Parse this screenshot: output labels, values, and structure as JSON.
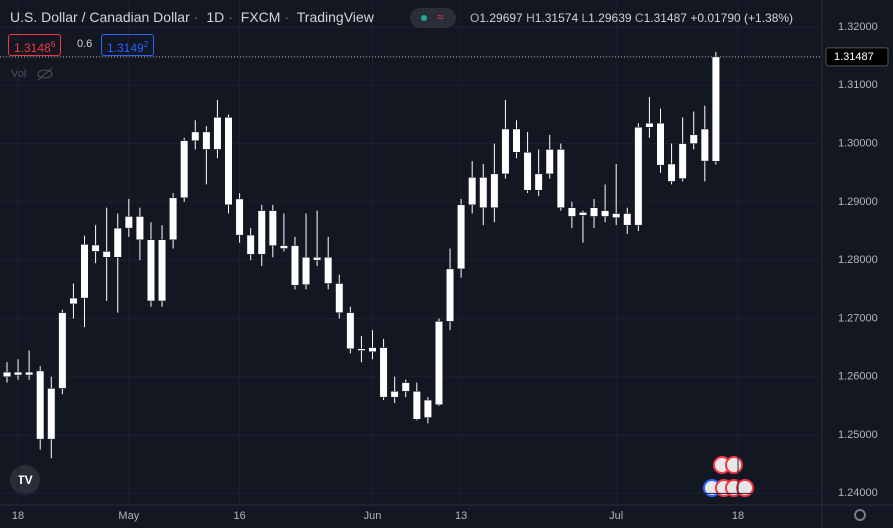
{
  "header": {
    "symbol": "U.S. Dollar / Canadian Dollar",
    "interval": "1D",
    "exchange": "FXCM",
    "brand": "TradingView",
    "o_label": "O",
    "h_label": "H",
    "l_label": "L",
    "c_label": "C",
    "change": "+0.01790 (+1.38%)"
  },
  "trade": {
    "sell_price": "1.3148",
    "sell_pip": "6",
    "spread": "0.6",
    "buy_price": "1.3149",
    "buy_pip": "2"
  },
  "volume_label": "Vol",
  "chart_data": {
    "type": "candlestick",
    "open": [
      1.26,
      1.2608,
      1.2603,
      1.261,
      1.2493,
      1.258,
      1.2725,
      1.2735,
      1.2826,
      1.2815,
      1.2805,
      1.2855,
      1.2875,
      1.2835,
      1.273,
      1.2835,
      1.2907,
      1.3005,
      1.302,
      1.299,
      1.3045,
      1.2905,
      1.2843,
      1.281,
      1.2885,
      1.2825,
      1.2825,
      1.2758,
      1.2805,
      1.2805,
      1.276,
      1.271,
      1.2648,
      1.2643,
      1.265,
      1.2565,
      1.2575,
      1.2575,
      1.253,
      1.2552,
      1.2695,
      1.2785,
      1.2895,
      1.2942,
      1.289,
      1.2948,
      1.3025,
      1.2985,
      1.292,
      1.2948,
      1.299,
      1.289,
      1.2877,
      1.2875,
      1.2885,
      1.288,
      1.288,
      1.286,
      1.3028,
      1.3035,
      1.2965,
      1.294,
      1.3,
      1.3025,
      1.29697
    ],
    "high": [
      1.2625,
      1.263,
      1.2645,
      1.2618,
      1.26,
      1.2715,
      1.276,
      1.2842,
      1.286,
      1.289,
      1.288,
      1.2905,
      1.289,
      1.2865,
      1.286,
      1.2915,
      1.301,
      1.304,
      1.303,
      1.3075,
      1.305,
      1.2915,
      1.2855,
      1.2895,
      1.2895,
      1.288,
      1.284,
      1.288,
      1.2885,
      1.284,
      1.2775,
      1.272,
      1.267,
      1.268,
      1.2665,
      1.26,
      1.2595,
      1.259,
      1.2565,
      1.27,
      1.282,
      1.2905,
      1.297,
      1.2965,
      1.3,
      1.3075,
      1.304,
      1.302,
      1.299,
      1.3015,
      1.3,
      1.29,
      1.2885,
      1.2905,
      1.293,
      1.2965,
      1.289,
      1.3035,
      1.308,
      1.306,
      1.3,
      1.3045,
      1.3055,
      1.3065,
      1.31574
    ],
    "low": [
      1.259,
      1.2595,
      1.2595,
      1.2475,
      1.246,
      1.257,
      1.27,
      1.2685,
      1.2795,
      1.273,
      1.271,
      1.284,
      1.28,
      1.272,
      1.272,
      1.282,
      1.29,
      1.299,
      1.293,
      1.2975,
      1.288,
      1.283,
      1.28,
      1.279,
      1.2805,
      1.2815,
      1.275,
      1.275,
      1.279,
      1.275,
      1.27,
      1.264,
      1.2625,
      1.263,
      1.256,
      1.2555,
      1.2565,
      1.2525,
      1.252,
      1.255,
      1.268,
      1.277,
      1.288,
      1.286,
      1.2865,
      1.294,
      1.2975,
      1.2915,
      1.291,
      1.294,
      1.2885,
      1.2855,
      1.283,
      1.2855,
      1.2865,
      1.286,
      1.2845,
      1.285,
      1.301,
      1.295,
      1.293,
      1.2935,
      1.299,
      1.2935,
      1.29639
    ],
    "close": [
      1.2608,
      1.2603,
      1.2608,
      1.2493,
      1.258,
      1.271,
      1.2735,
      1.2827,
      1.2815,
      1.2805,
      1.2855,
      1.2875,
      1.2835,
      1.273,
      1.2835,
      1.2907,
      1.3005,
      1.302,
      1.299,
      1.3045,
      1.2895,
      1.2843,
      1.281,
      1.2885,
      1.2825,
      1.282,
      1.2757,
      1.2805,
      1.28,
      1.276,
      1.271,
      1.2648,
      1.2645,
      1.265,
      1.2565,
      1.2575,
      1.259,
      1.2527,
      1.256,
      1.2695,
      1.2785,
      1.2895,
      1.2942,
      1.289,
      1.2948,
      1.3025,
      1.2985,
      1.292,
      1.2948,
      1.299,
      1.289,
      1.2875,
      1.2882,
      1.289,
      1.2875,
      1.2873,
      1.286,
      1.3028,
      1.3035,
      1.2963,
      1.2935,
      1.3,
      1.3015,
      1.297,
      1.31487
    ],
    "color": "#ffffff",
    "xlim": [
      -0.63,
      73.4
    ],
    "xticks": [
      {
        "value": 1,
        "label": "18"
      },
      {
        "value": 11,
        "label": "May"
      },
      {
        "value": 21,
        "label": "16"
      },
      {
        "value": 33,
        "label": "Jun"
      },
      {
        "value": 41,
        "label": "13"
      },
      {
        "value": 55,
        "label": "Jul"
      },
      {
        "value": 66,
        "label": "18"
      }
    ],
    "ylim": [
      1.238,
      1.32463
    ],
    "yticks": [
      {
        "value": 1.24,
        "label": "1.24000"
      },
      {
        "value": 1.25,
        "label": "1.25000"
      },
      {
        "value": 1.26,
        "label": "1.26000"
      },
      {
        "value": 1.27,
        "label": "1.27000"
      },
      {
        "value": 1.28,
        "label": "1.28000"
      },
      {
        "value": 1.29,
        "label": "1.29000"
      },
      {
        "value": 1.3,
        "label": "1.30000"
      },
      {
        "value": 1.31,
        "label": "1.31000"
      },
      {
        "value": 1.32,
        "label": "1.32000"
      }
    ],
    "grid": true
  }
}
